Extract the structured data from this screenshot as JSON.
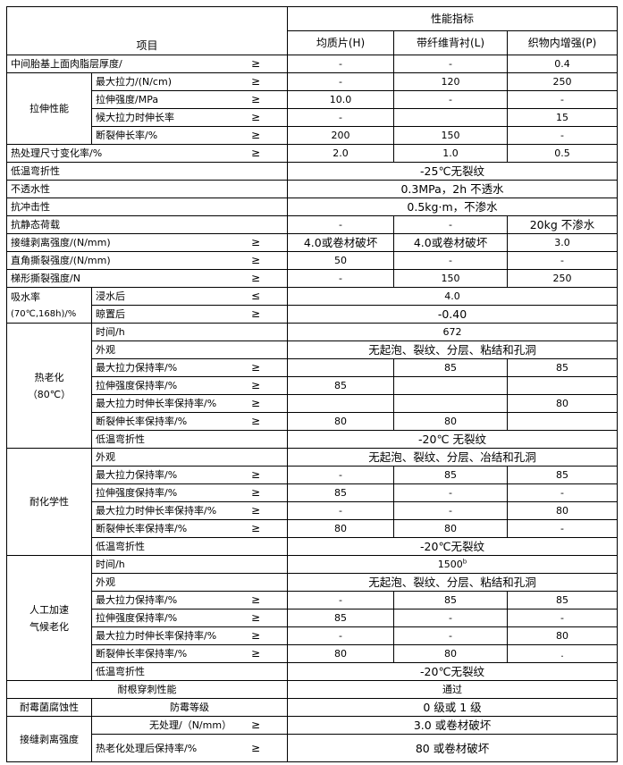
{
  "header": {
    "item": "项目",
    "perf": "性能指标",
    "cols": [
      "均质片(H)",
      "带纤维背衬(L)",
      "织物内增强(P)"
    ]
  },
  "sections": [
    {
      "label": "中间胎基上面肉脂层厚度/",
      "sign": "≥",
      "values": [
        "-",
        "-",
        "0.4"
      ]
    },
    {
      "group": "拉伸性能",
      "rows": [
        {
          "label": "最大拉力/(N/cm)",
          "sign": "≥",
          "values": [
            "-",
            "120",
            "250"
          ]
        },
        {
          "label": "拉伸强度/MPa",
          "sign": "≥",
          "values": [
            "10.0",
            "-",
            "-"
          ]
        },
        {
          "label": "候大拉力时伸长率",
          "sign": "≥",
          "values": [
            "-",
            "",
            "15"
          ]
        },
        {
          "label": "断裂伸长率/%",
          "sign": "≥",
          "values": [
            "200",
            "150",
            "-"
          ]
        }
      ]
    },
    {
      "label": "热处理尺寸变化率/%",
      "sign": "≥",
      "values": [
        "2.0",
        "1.0",
        "0.5"
      ]
    },
    {
      "label": "低温弯折性",
      "value": "-25℃无裂纹"
    },
    {
      "label": "不透水性",
      "value": "0.3MPa，2h 不透水"
    },
    {
      "label": "抗冲击性",
      "value": "0.5kg·m，不渗水"
    },
    {
      "label": "抗静态荷载",
      "values": [
        "-",
        "-",
        "20kg 不渗水"
      ]
    },
    {
      "label": "接缝剥离强度/(N/mm)",
      "sign": "≥",
      "values": [
        "4.0或卷材破坏",
        "4.0或卷材破坏",
        "3.0"
      ]
    },
    {
      "label": "直角撕裂强度/(N/mm)",
      "sign": "≥",
      "values": [
        "50",
        "-",
        "-"
      ]
    },
    {
      "label": "梯形撕裂强度/N",
      "sign": "≥",
      "values": [
        "-",
        "150",
        "250"
      ]
    },
    {
      "group": "吸水率",
      "group2": "(70℃,168h)/%",
      "rows": [
        {
          "label": "浸水后",
          "sign": "≤",
          "value": "4.0"
        },
        {
          "label": "晾置后",
          "sign": "≥",
          "value": "-0.40"
        }
      ]
    },
    {
      "group": "热老化",
      "group2": "（80℃）",
      "rows": [
        {
          "label": "时间/h",
          "value": "672"
        },
        {
          "label": "外观",
          "value": "无起泡、裂纹、分层、粘结和孔洞"
        },
        {
          "label": "最大拉力保持率/%",
          "sign": "≥",
          "values": [
            "",
            "85",
            "85"
          ]
        },
        {
          "label": "拉伸强度保持率/%",
          "sign": "≥",
          "values": [
            "85",
            "",
            ""
          ]
        },
        {
          "label": "最大拉力时伸长率保持率/%",
          "sign": "≥",
          "values": [
            "",
            "",
            "80"
          ]
        },
        {
          "label": "断裂伸长率保持率/%",
          "sign": "≥",
          "values": [
            "80",
            "80",
            ""
          ]
        },
        {
          "label": "低温弯折性",
          "value": "-20℃ 无裂纹"
        }
      ]
    },
    {
      "group": "耐化学性",
      "rows": [
        {
          "label": "外观",
          "value": "无起泡、裂纹、分层、冶结和孔洞"
        },
        {
          "label": "最大拉力保持率/%",
          "sign": "≥",
          "values": [
            "-",
            "85",
            "85"
          ]
        },
        {
          "label": "拉伸强度保持率/%",
          "sign": "≥",
          "values": [
            "85",
            "-",
            "-"
          ]
        },
        {
          "label": "最大拉力时伸长率保持率/%",
          "sign": "≥",
          "values": [
            "-",
            "-",
            "80"
          ]
        },
        {
          "label": "断裂伸长率保持率/%",
          "sign": "≥",
          "values": [
            "80",
            "80",
            "-"
          ]
        },
        {
          "label": "低温弯折性",
          "value": "-20℃无裂纹"
        }
      ]
    },
    {
      "group": "人工加速",
      "group2": "气候老化",
      "rows": [
        {
          "label": "时间/h",
          "value": "1500",
          "sup": "b"
        },
        {
          "label": "外观",
          "value": "无起泡、裂纹、分层、粘结和孔洞"
        },
        {
          "label": "最大拉力保持率/%",
          "sign": "≥",
          "values": [
            "-",
            "85",
            "85"
          ]
        },
        {
          "label": "拉伸强度保持率/%",
          "sign": "≥",
          "values": [
            "85",
            "-",
            "-"
          ]
        },
        {
          "label": "最大拉力时伸长率保持率/%",
          "sign": "≥",
          "values": [
            "-",
            "-",
            "80"
          ]
        },
        {
          "label": "断裂伸长率保持率/%",
          "sign": "≥",
          "values": [
            "80",
            "80",
            "."
          ]
        },
        {
          "label": "低温弯折性",
          "value": "-20℃无裂纹"
        }
      ]
    },
    {
      "label": "耐根穿刺性能",
      "value": "通过"
    },
    {
      "group": "耐霉菌腐蚀性",
      "rows": [
        {
          "label": "防霉等级",
          "value": "0 级或 1 级"
        }
      ]
    },
    {
      "group": "接缝剥离强度",
      "rows": [
        {
          "label": "无处理/（N/mm）",
          "sign": "≥",
          "value": "3.0 或卷材破坏"
        },
        {
          "label": "热老化处理后保持率/%",
          "sign": "≥",
          "value": "80 或卷材破坏"
        }
      ]
    }
  ]
}
